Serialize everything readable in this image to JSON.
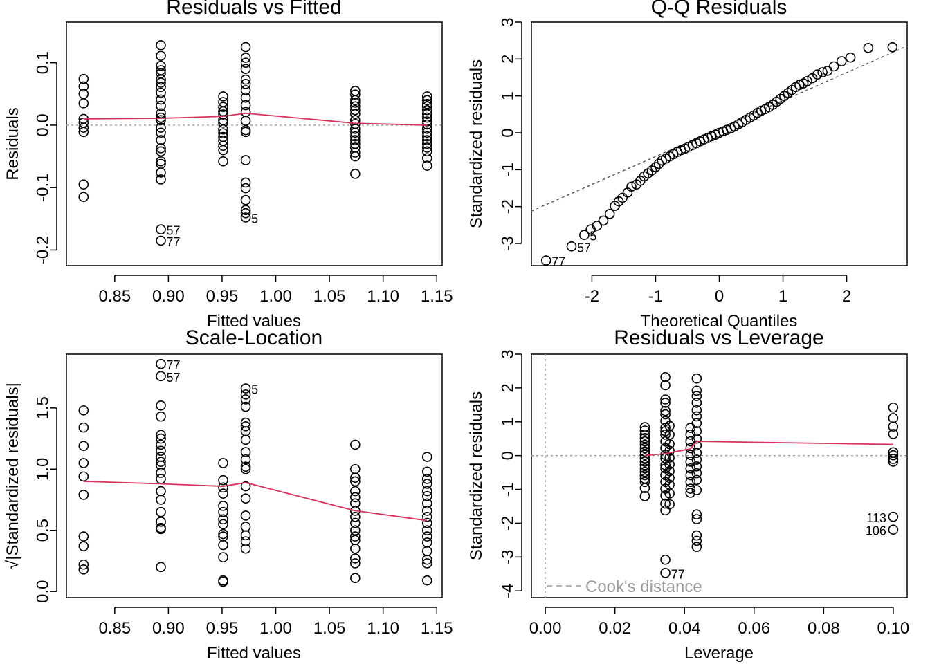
{
  "chart_data": [
    {
      "id": "p1",
      "type": "scatter",
      "title": "Residuals vs Fitted",
      "xlabel": "Fitted values",
      "ylabel": "Residuals",
      "xlim": [
        0.805,
        1.155
      ],
      "ylim": [
        -0.225,
        0.165
      ],
      "xticks": [
        {
          "v": 0.85,
          "label": "0.85"
        },
        {
          "v": 0.9,
          "label": "0.90"
        },
        {
          "v": 0.95,
          "label": "0.95"
        },
        {
          "v": 1.0,
          "label": "1.00"
        },
        {
          "v": 1.05,
          "label": "1.05"
        },
        {
          "v": 1.1,
          "label": "1.10"
        },
        {
          "v": 1.15,
          "label": "1.15"
        }
      ],
      "yticks": [
        {
          "v": -0.2,
          "label": "-0.2"
        },
        {
          "v": -0.1,
          "label": "-0.1"
        },
        {
          "v": 0.0,
          "label": "0.0"
        },
        {
          "v": 0.1,
          "label": "0.1"
        }
      ],
      "groups": [
        {
          "x": 0.821,
          "ys": [
            0.074,
            0.062,
            0.05,
            0.035,
            0.01,
            0.004,
            -0.004,
            -0.011,
            -0.095,
            -0.115
          ]
        },
        {
          "x": 0.893,
          "ys": [
            0.128,
            0.111,
            0.095,
            0.088,
            0.083,
            0.073,
            0.068,
            0.061,
            0.052,
            0.041,
            0.031,
            0.019,
            0.012,
            0.008,
            -0.004,
            -0.012,
            -0.024,
            -0.037,
            -0.042,
            -0.058,
            -0.062,
            -0.076,
            -0.087,
            -0.167,
            -0.185
          ]
        },
        {
          "x": 0.951,
          "ys": [
            0.046,
            0.037,
            0.029,
            0.022,
            0.017,
            0.008,
            0.004,
            -0.007,
            -0.013,
            -0.019,
            -0.025,
            -0.033,
            -0.04,
            -0.058
          ]
        },
        {
          "x": 0.972,
          "ys": [
            0.125,
            0.108,
            0.1,
            0.09,
            0.073,
            0.066,
            0.056,
            0.044,
            0.032,
            0.021,
            0.007,
            -0.008,
            -0.011,
            -0.056,
            -0.092,
            -0.101,
            -0.12,
            -0.136,
            -0.141,
            -0.148
          ]
        },
        {
          "x": 1.074,
          "ys": [
            0.055,
            0.049,
            0.04,
            0.036,
            0.03,
            0.024,
            0.018,
            0.008,
            0.002,
            -0.006,
            -0.012,
            -0.018,
            -0.024,
            -0.03,
            -0.036,
            -0.044,
            -0.05,
            -0.078
          ]
        },
        {
          "x": 1.141,
          "ys": [
            0.046,
            0.04,
            0.034,
            0.03,
            0.024,
            0.018,
            0.012,
            0.006,
            0.001,
            -0.006,
            -0.012,
            -0.018,
            -0.024,
            -0.03,
            -0.036,
            -0.042,
            -0.053,
            -0.065
          ]
        }
      ],
      "smooth": {
        "x": [
          0.821,
          0.893,
          0.951,
          0.972,
          1.074,
          1.141
        ],
        "y": [
          0.01,
          0.011,
          0.014,
          0.019,
          0.003,
          0.0
        ]
      },
      "hline": 0,
      "labels": [
        {
          "x": 0.893,
          "y": -0.167,
          "text": "57"
        },
        {
          "x": 0.893,
          "y": -0.185,
          "text": "77"
        },
        {
          "x": 0.972,
          "y": -0.148,
          "text": "5"
        }
      ]
    },
    {
      "id": "p2",
      "type": "scatter",
      "title": "Q-Q Residuals",
      "xlabel": "Theoretical Quantiles",
      "ylabel": "Standardized residuals",
      "xlim": [
        -2.95,
        2.95
      ],
      "ylim": [
        -3.6,
        3.0
      ],
      "xticks": [
        {
          "v": -2,
          "label": "-2"
        },
        {
          "v": -1,
          "label": "-1"
        },
        {
          "v": 0,
          "label": "0"
        },
        {
          "v": 1,
          "label": "1"
        },
        {
          "v": 2,
          "label": "2"
        }
      ],
      "yticks": [
        {
          "v": -3,
          "label": "-3"
        },
        {
          "v": -2,
          "label": "-2"
        },
        {
          "v": -1,
          "label": "-1"
        },
        {
          "v": 0,
          "label": "0"
        },
        {
          "v": 1,
          "label": "1"
        },
        {
          "v": 2,
          "label": "2"
        },
        {
          "v": 3,
          "label": "3"
        }
      ],
      "points": [
        [
          -2.72,
          -3.46
        ],
        [
          -2.32,
          -3.08
        ],
        [
          -2.12,
          -2.77
        ],
        [
          -2.02,
          -2.62
        ],
        [
          -1.92,
          -2.52
        ],
        [
          -1.82,
          -2.38
        ],
        [
          -1.72,
          -2.2
        ],
        [
          -1.64,
          -1.98
        ],
        [
          -1.58,
          -1.86
        ],
        [
          -1.52,
          -1.76
        ],
        [
          -1.44,
          -1.62
        ],
        [
          -1.38,
          -1.46
        ],
        [
          -1.3,
          -1.4
        ],
        [
          -1.24,
          -1.3
        ],
        [
          -1.18,
          -1.18
        ],
        [
          -1.12,
          -1.1
        ],
        [
          -1.06,
          -1.02
        ],
        [
          -1.0,
          -0.93
        ],
        [
          -0.95,
          -0.84
        ],
        [
          -0.9,
          -0.75
        ],
        [
          -0.84,
          -0.7
        ],
        [
          -0.78,
          -0.64
        ],
        [
          -0.72,
          -0.58
        ],
        [
          -0.66,
          -0.52
        ],
        [
          -0.6,
          -0.47
        ],
        [
          -0.54,
          -0.43
        ],
        [
          -0.48,
          -0.38
        ],
        [
          -0.42,
          -0.33
        ],
        [
          -0.36,
          -0.28
        ],
        [
          -0.3,
          -0.23
        ],
        [
          -0.24,
          -0.18
        ],
        [
          -0.18,
          -0.14
        ],
        [
          -0.12,
          -0.09
        ],
        [
          -0.06,
          -0.05
        ],
        [
          0.0,
          0.0
        ],
        [
          0.06,
          0.04
        ],
        [
          0.12,
          0.08
        ],
        [
          0.18,
          0.12
        ],
        [
          0.24,
          0.17
        ],
        [
          0.3,
          0.23
        ],
        [
          0.36,
          0.29
        ],
        [
          0.42,
          0.35
        ],
        [
          0.48,
          0.41
        ],
        [
          0.54,
          0.47
        ],
        [
          0.6,
          0.54
        ],
        [
          0.66,
          0.6
        ],
        [
          0.72,
          0.64
        ],
        [
          0.78,
          0.7
        ],
        [
          0.84,
          0.76
        ],
        [
          0.9,
          0.84
        ],
        [
          0.96,
          0.92
        ],
        [
          1.02,
          1.0
        ],
        [
          1.08,
          1.08
        ],
        [
          1.14,
          1.16
        ],
        [
          1.2,
          1.24
        ],
        [
          1.26,
          1.3
        ],
        [
          1.32,
          1.34
        ],
        [
          1.38,
          1.4
        ],
        [
          1.46,
          1.48
        ],
        [
          1.54,
          1.58
        ],
        [
          1.62,
          1.64
        ],
        [
          1.7,
          1.68
        ],
        [
          1.8,
          1.8
        ],
        [
          1.92,
          1.94
        ],
        [
          2.06,
          2.04
        ],
        [
          2.34,
          2.3
        ],
        [
          2.72,
          2.32
        ]
      ],
      "qqline": {
        "x1": -2.95,
        "y1": -2.12,
        "x2": 2.95,
        "y2": 2.35
      },
      "labels": [
        {
          "x": -2.72,
          "y": -3.46,
          "text": "77"
        },
        {
          "x": -2.32,
          "y": -3.08,
          "text": "57"
        },
        {
          "x": -2.12,
          "y": -2.77,
          "text": "5"
        }
      ]
    },
    {
      "id": "p3",
      "type": "scatter",
      "title": "Scale-Location",
      "xlabel": "Fitted values",
      "ylabel": "√|Standardized residuals|",
      "xlim": [
        0.805,
        1.155
      ],
      "ylim": [
        -0.05,
        1.94
      ],
      "xticks": [
        {
          "v": 0.85,
          "label": "0.85"
        },
        {
          "v": 0.9,
          "label": "0.90"
        },
        {
          "v": 0.95,
          "label": "0.95"
        },
        {
          "v": 1.0,
          "label": "1.00"
        },
        {
          "v": 1.05,
          "label": "1.05"
        },
        {
          "v": 1.1,
          "label": "1.10"
        },
        {
          "v": 1.15,
          "label": "1.15"
        }
      ],
      "yticks": [
        {
          "v": 0.0,
          "label": "0.0"
        },
        {
          "v": 0.5,
          "label": "0.5"
        },
        {
          "v": 1.0,
          "label": "1.0"
        },
        {
          "v": 1.5,
          "label": "1.5"
        }
      ],
      "groups": [
        {
          "x": 0.821,
          "ys": [
            1.48,
            1.34,
            1.19,
            1.05,
            0.94,
            0.79,
            0.45,
            0.37,
            0.22,
            0.18
          ]
        },
        {
          "x": 0.893,
          "ys": [
            1.86,
            1.76,
            1.52,
            1.43,
            1.28,
            1.25,
            1.2,
            1.15,
            1.1,
            1.06,
            1.03,
            0.97,
            0.92,
            0.82,
            0.75,
            0.65,
            0.57,
            0.52,
            0.51,
            0.2
          ]
        },
        {
          "x": 0.951,
          "ys": [
            1.05,
            0.91,
            0.85,
            0.8,
            0.7,
            0.65,
            0.59,
            0.55,
            0.47,
            0.45,
            0.38,
            0.28,
            0.09,
            0.08
          ]
        },
        {
          "x": 0.972,
          "ys": [
            1.66,
            1.61,
            1.57,
            1.51,
            1.38,
            1.35,
            1.31,
            1.24,
            1.14,
            1.08,
            1.02,
            1.0,
            0.86,
            0.76,
            0.62,
            0.53,
            0.46,
            0.41,
            0.35
          ]
        },
        {
          "x": 1.074,
          "ys": [
            1.2,
            1.0,
            0.93,
            0.9,
            0.82,
            0.77,
            0.72,
            0.66,
            0.61,
            0.56,
            0.5,
            0.45,
            0.42,
            0.35,
            0.27,
            0.23,
            0.11
          ]
        },
        {
          "x": 1.141,
          "ys": [
            1.1,
            0.98,
            0.92,
            0.88,
            0.82,
            0.78,
            0.72,
            0.66,
            0.61,
            0.56,
            0.5,
            0.45,
            0.4,
            0.33,
            0.26,
            0.23,
            0.09
          ]
        }
      ],
      "smooth": {
        "x": [
          0.821,
          0.893,
          0.951,
          0.972,
          1.074,
          1.141
        ],
        "y": [
          0.9,
          0.88,
          0.86,
          0.89,
          0.66,
          0.58
        ]
      },
      "labels": [
        {
          "x": 0.893,
          "y": 1.86,
          "text": "77"
        },
        {
          "x": 0.893,
          "y": 1.76,
          "text": "57"
        },
        {
          "x": 0.972,
          "y": 1.66,
          "text": "5"
        }
      ]
    },
    {
      "id": "p4",
      "type": "scatter",
      "title": "Residuals vs Leverage",
      "xlabel": "Leverage",
      "ylabel": "Standardized residuals",
      "xlim": [
        -0.004,
        0.104
      ],
      "ylim": [
        -4.2,
        3.0
      ],
      "xticks": [
        {
          "v": 0.0,
          "label": "0.00"
        },
        {
          "v": 0.02,
          "label": "0.02"
        },
        {
          "v": 0.04,
          "label": "0.04"
        },
        {
          "v": 0.06,
          "label": "0.06"
        },
        {
          "v": 0.08,
          "label": "0.08"
        },
        {
          "v": 0.1,
          "label": "0.10"
        }
      ],
      "yticks": [
        {
          "v": -4,
          "label": "-4"
        },
        {
          "v": -3,
          "label": "-3"
        },
        {
          "v": -2,
          "label": "-2"
        },
        {
          "v": -1,
          "label": "-1"
        },
        {
          "v": 0,
          "label": "0"
        },
        {
          "v": 1,
          "label": "1"
        },
        {
          "v": 2,
          "label": "2"
        },
        {
          "v": 3,
          "label": "3"
        }
      ],
      "groups": [
        {
          "x": 0.0286,
          "ys": [
            0.84,
            0.74,
            0.62,
            0.52,
            0.42,
            0.32,
            0.22,
            0.12,
            0.02,
            -0.08,
            -0.18,
            -0.28,
            -0.38,
            -0.48,
            -0.58,
            -0.68,
            -0.78,
            -0.96,
            -1.2
          ]
        },
        {
          "x": 0.0345,
          "ys": [
            2.32,
            2.08,
            1.66,
            1.56,
            1.32,
            1.22,
            1.02,
            0.82,
            0.72,
            0.62,
            0.42,
            0.22,
            0.02,
            -0.08,
            -0.28,
            -0.38,
            -0.58,
            -0.78,
            -0.98,
            -1.18,
            -1.42,
            -1.62,
            -3.08,
            -3.47
          ]
        },
        {
          "x": 0.0357,
          "ys": [
            0.88,
            0.62,
            0.34,
            0.14,
            -0.06,
            -0.26,
            -0.46,
            -0.66,
            -0.86,
            -1.12,
            -1.44
          ]
        },
        {
          "x": 0.0417,
          "ys": [
            0.82,
            0.62,
            0.42,
            0.22,
            0.02,
            -0.18,
            -0.38,
            -0.58,
            -0.78,
            -0.98,
            -1.1
          ]
        },
        {
          "x": 0.0435,
          "ys": [
            2.28,
            1.92,
            1.76,
            1.56,
            1.34,
            1.16,
            0.96,
            0.72,
            0.5,
            0.3,
            0.08,
            -0.12,
            -0.32,
            -0.52,
            -0.72,
            -1.02,
            -1.74,
            -1.88,
            -2.36,
            -2.52,
            -2.7
          ]
        },
        {
          "x": 0.1,
          "ys": [
            1.42,
            1.11,
            0.86,
            0.64,
            0.1,
            0.01,
            -0.1,
            -0.18,
            -1.81,
            -2.19
          ]
        }
      ],
      "smooth": {
        "x": [
          0.0286,
          0.0345,
          0.0417,
          0.0435,
          0.1
        ],
        "y": [
          0.0,
          0.06,
          0.2,
          0.42,
          0.33
        ]
      },
      "hline": 0,
      "vline": 0,
      "labels": [
        {
          "x": 0.0345,
          "y": -3.47,
          "text": "77",
          "side": "right"
        },
        {
          "x": 0.1,
          "y": -1.81,
          "text": "113",
          "side": "left"
        },
        {
          "x": 0.1,
          "y": -2.19,
          "text": "106",
          "side": "left"
        }
      ],
      "legend_text": "Cook's distance",
      "legend_position": "bottom-left"
    }
  ]
}
